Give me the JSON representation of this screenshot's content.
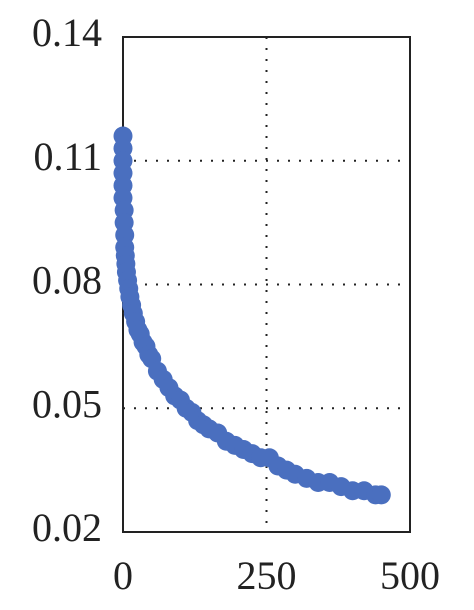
{
  "chart_data": {
    "type": "scatter",
    "x": [
      0,
      0,
      0,
      0,
      0,
      0,
      2,
      2,
      3,
      3,
      4,
      5,
      6,
      8,
      10,
      12,
      15,
      18,
      22,
      26,
      30,
      35,
      40,
      45,
      50,
      60,
      70,
      80,
      90,
      100,
      110,
      120,
      130,
      140,
      150,
      165,
      180,
      195,
      210,
      225,
      240,
      255,
      270,
      285,
      300,
      320,
      340,
      360,
      380,
      400,
      420,
      440,
      450
    ],
    "values": [
      0.116,
      0.113,
      0.11,
      0.107,
      0.104,
      0.101,
      0.098,
      0.095,
      0.092,
      0.089,
      0.087,
      0.085,
      0.083,
      0.081,
      0.079,
      0.077,
      0.075,
      0.073,
      0.071,
      0.069,
      0.068,
      0.066,
      0.065,
      0.063,
      0.062,
      0.059,
      0.057,
      0.055,
      0.053,
      0.052,
      0.05,
      0.049,
      0.047,
      0.046,
      0.045,
      0.044,
      0.042,
      0.041,
      0.04,
      0.039,
      0.038,
      0.038,
      0.036,
      0.035,
      0.034,
      0.033,
      0.032,
      0.032,
      0.031,
      0.03,
      0.03,
      0.029,
      0.029
    ],
    "color": "#4a6fbf",
    "xlim": [
      0,
      500
    ],
    "xticks": [
      0,
      250,
      500
    ],
    "ylim": [
      0.02,
      0.14
    ],
    "yticks": [
      0.02,
      0.05,
      0.08,
      0.11,
      0.14
    ],
    "grid": true
  }
}
